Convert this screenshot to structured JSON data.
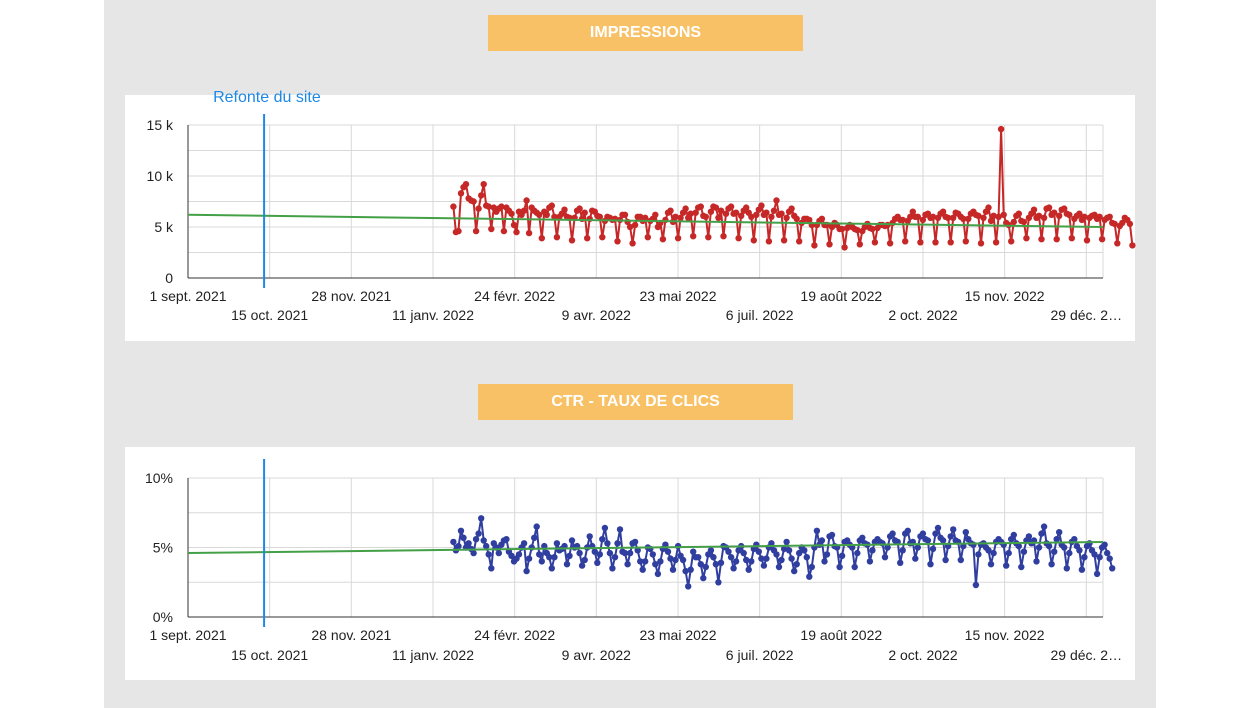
{
  "colors": {
    "panel": "#e6e6e6",
    "banner": "#f9c165",
    "grid": "#d9d9d9",
    "trend": "#43a047",
    "annotation": "#1e88e5"
  },
  "chart_data": [
    {
      "type": "line",
      "title": "IMPRESSIONS",
      "x_range": [
        "2021-09-01",
        "2023-01-07"
      ],
      "ylim": [
        0,
        15000
      ],
      "y_ticks": [
        {
          "v": 0,
          "label": "0"
        },
        {
          "v": 5000,
          "label": "5 k"
        },
        {
          "v": 10000,
          "label": "10 k"
        },
        {
          "v": 15000,
          "label": "15 k"
        }
      ],
      "grid": true,
      "series": [
        {
          "color": "#c62828",
          "start": "2022-01-22",
          "values": [
            7000,
            4500,
            4600,
            8300,
            8900,
            9200,
            7800,
            7600,
            7500,
            4600,
            6800,
            8100,
            9200,
            7100,
            7000,
            4800,
            6900,
            6500,
            6800,
            7000,
            4600,
            6900,
            6600,
            6300,
            5200,
            4500,
            6500,
            6200,
            6600,
            7600,
            4400,
            6900,
            6600,
            6400,
            6200,
            3900,
            6500,
            6200,
            6900,
            7100,
            6000,
            4000,
            6000,
            6300,
            6700,
            6000,
            5900,
            3700,
            5900,
            6600,
            6800,
            5800,
            6400,
            3900,
            5800,
            6600,
            6500,
            6100,
            6000,
            4000,
            5600,
            6000,
            5900,
            5700,
            5800,
            3600,
            5700,
            6200,
            6200,
            5500,
            5000,
            3400,
            5200,
            6000,
            6000,
            5600,
            5900,
            4000,
            5600,
            5800,
            6200,
            5000,
            5400,
            3800,
            5700,
            6400,
            6600,
            5500,
            6000,
            3900,
            5900,
            6400,
            6800,
            5900,
            6300,
            4100,
            6400,
            6900,
            7000,
            6100,
            6000,
            4000,
            6500,
            7000,
            6900,
            5900,
            6600,
            4100,
            6300,
            6800,
            7000,
            6300,
            6400,
            3900,
            6100,
            6600,
            6900,
            6400,
            6000,
            3700,
            6200,
            6700,
            7100,
            6200,
            6400,
            3600,
            6000,
            6600,
            7600,
            6200,
            6300,
            3700,
            5900,
            6500,
            6800,
            6100,
            5800,
            3600,
            5400,
            5800,
            5800,
            5700,
            5200,
            3200,
            5200,
            5600,
            5800,
            5200,
            5200,
            3300,
            5000,
            5400,
            5200,
            4800,
            4800,
            3000,
            4900,
            5200,
            5000,
            4800,
            4700,
            3300,
            4600,
            5000,
            5300,
            4900,
            4800,
            3500,
            4900,
            5200,
            5200,
            5100,
            5200,
            3400,
            5400,
            5800,
            6000,
            5700,
            5700,
            3600,
            5600,
            6000,
            6500,
            6000,
            6000,
            3500,
            5700,
            6200,
            6300,
            5900,
            6000,
            3500,
            5900,
            6300,
            6500,
            6000,
            5900,
            3500,
            5900,
            6400,
            6300,
            6000,
            5800,
            3600,
            5800,
            6300,
            6500,
            6200,
            6100,
            3400,
            5900,
            6500,
            6900,
            5600,
            6100,
            3500,
            6000,
            14600,
            6200,
            5400,
            5200,
            3600,
            5500,
            6100,
            6300,
            5600,
            5500,
            3900,
            5900,
            6300,
            6700,
            5900,
            6100,
            3800,
            5900,
            6800,
            6900,
            6200,
            6400,
            3800,
            6100,
            6700,
            6800,
            6300,
            6200,
            3900,
            5800,
            6100,
            6300,
            5700,
            6000,
            3700,
            5900,
            6100,
            6200,
            5800,
            6000,
            3800,
            5700,
            5900,
            6000,
            5400,
            5300,
            3400,
            5100,
            5400,
            5900,
            5700,
            5300,
            3200
          ]
        },
        {
          "color": "#43a047",
          "trend": true,
          "points": [
            [
              "2021-09-01",
              6200
            ],
            [
              "2023-01-07",
              5000
            ]
          ]
        }
      ],
      "annotation": {
        "date": "2021-10-12",
        "label": "Refonte du site"
      },
      "x_ticks_top": [
        {
          "date": "2021-09-01",
          "label": "1 sept. 2021"
        },
        {
          "date": "2021-11-28",
          "label": "28 nov. 2021"
        },
        {
          "date": "2022-02-24",
          "label": "24 févr. 2022"
        },
        {
          "date": "2022-05-23",
          "label": "23 mai 2022"
        },
        {
          "date": "2022-08-19",
          "label": "19 août 2022"
        },
        {
          "date": "2022-11-15",
          "label": "15 nov. 2022"
        }
      ],
      "x_ticks_bottom": [
        {
          "date": "2021-10-15",
          "label": "15 oct. 2021"
        },
        {
          "date": "2022-01-11",
          "label": "11 janv. 2022"
        },
        {
          "date": "2022-04-09",
          "label": "9 avr. 2022"
        },
        {
          "date": "2022-07-06",
          "label": "6 juil. 2022"
        },
        {
          "date": "2022-10-02",
          "label": "2 oct. 2022"
        },
        {
          "date": "2022-12-29",
          "label": "29 déc. 2…"
        }
      ]
    },
    {
      "type": "line",
      "title": "CTR - TAUX DE CLICS",
      "x_range": [
        "2021-09-01",
        "2023-01-07"
      ],
      "ylim": [
        0,
        10
      ],
      "y_ticks": [
        {
          "v": 0,
          "label": "0%"
        },
        {
          "v": 5,
          "label": "5%"
        },
        {
          "v": 10,
          "label": "10%"
        }
      ],
      "grid": true,
      "series": [
        {
          "color": "#303f9f",
          "start": "2022-01-22",
          "values": [
            5.4,
            4.8,
            5.1,
            6.2,
            5.7,
            5.0,
            5.3,
            4.9,
            4.6,
            5.6,
            6.0,
            7.1,
            5.5,
            5.1,
            4.5,
            3.5,
            5.3,
            5.0,
            4.6,
            5.2,
            5.5,
            5.6,
            4.7,
            4.4,
            4.0,
            4.2,
            4.5,
            5.0,
            5.3,
            3.3,
            4.2,
            5.0,
            5.7,
            6.5,
            4.5,
            4.0,
            5.1,
            4.6,
            4.3,
            3.5,
            4.3,
            5.3,
            4.8,
            4.9,
            5.1,
            3.8,
            4.4,
            5.5,
            5.0,
            5.1,
            4.6,
            3.7,
            4.1,
            5.0,
            5.8,
            5.1,
            4.7,
            3.9,
            4.5,
            5.6,
            6.4,
            5.3,
            4.6,
            3.5,
            4.3,
            5.3,
            6.3,
            4.7,
            4.6,
            3.8,
            4.6,
            5.3,
            5.4,
            4.8,
            4.0,
            3.4,
            4.0,
            5.0,
            4.9,
            4.5,
            3.8,
            3.1,
            4.0,
            4.9,
            5.2,
            4.7,
            4.2,
            3.4,
            4.1,
            5.1,
            4.4,
            4.1,
            3.3,
            2.2,
            3.4,
            4.7,
            4.3,
            4.3,
            3.8,
            2.8,
            3.6,
            4.5,
            4.8,
            4.3,
            3.8,
            2.5,
            3.9,
            5.1,
            5.0,
            4.7,
            4.3,
            3.5,
            4.0,
            4.8,
            5.1,
            4.6,
            4.1,
            3.4,
            4.0,
            4.9,
            5.2,
            4.7,
            4.2,
            3.7,
            4.2,
            5.0,
            5.3,
            4.8,
            4.5,
            3.6,
            4.1,
            4.9,
            5.4,
            4.8,
            4.2,
            3.3,
            3.8,
            4.6,
            5.0,
            4.8,
            4.3,
            2.9,
            3.6,
            5.0,
            6.2,
            5.2,
            5.5,
            4.0,
            4.5,
            5.8,
            5.9,
            5.1,
            5.0,
            3.6,
            4.4,
            5.4,
            5.5,
            5.2,
            5.0,
            3.6,
            4.6,
            5.5,
            5.7,
            5.3,
            5.2,
            4.0,
            4.8,
            5.4,
            5.6,
            5.4,
            5.3,
            4.3,
            5.0,
            5.8,
            6.0,
            5.5,
            5.4,
            3.9,
            4.8,
            6.0,
            6.2,
            5.3,
            5.4,
            4.2,
            5.0,
            5.8,
            6.0,
            5.6,
            5.5,
            3.8,
            4.9,
            6.0,
            6.4,
            5.7,
            5.5,
            4.1,
            5.1,
            5.8,
            6.3,
            5.5,
            5.4,
            4.1,
            5.1,
            6.1,
            5.6,
            5.3,
            5.2,
            2.3,
            4.5,
            5.2,
            5.3,
            5.0,
            4.8,
            3.8,
            4.6,
            5.4,
            5.6,
            5.4,
            5.2,
            3.7,
            4.6,
            5.6,
            5.9,
            5.3,
            5.1,
            3.6,
            4.7,
            5.5,
            5.8,
            5.3,
            5.5,
            4.0,
            5.0,
            6.0,
            6.5,
            5.3,
            5.1,
            3.8,
            4.7,
            5.6,
            6.1,
            5.2,
            5.0,
            3.5,
            4.6,
            5.4,
            5.6,
            5.1,
            4.8,
            3.4,
            4.3,
            5.1,
            5.3,
            4.8,
            4.5,
            3.1,
            4.3,
            5.0,
            5.2,
            4.6,
            4.2,
            3.5
          ]
        },
        {
          "color": "#43a047",
          "trend": true,
          "points": [
            [
              "2021-09-01",
              4.6
            ],
            [
              "2023-01-07",
              5.4
            ]
          ]
        }
      ],
      "annotation": {
        "date": "2021-10-12",
        "label": ""
      },
      "x_ticks_top": [
        {
          "date": "2021-09-01",
          "label": "1 sept. 2021"
        },
        {
          "date": "2021-11-28",
          "label": "28 nov. 2021"
        },
        {
          "date": "2022-02-24",
          "label": "24 févr. 2022"
        },
        {
          "date": "2022-05-23",
          "label": "23 mai 2022"
        },
        {
          "date": "2022-08-19",
          "label": "19 août 2022"
        },
        {
          "date": "2022-11-15",
          "label": "15 nov. 2022"
        }
      ],
      "x_ticks_bottom": [
        {
          "date": "2021-10-15",
          "label": "15 oct. 2021"
        },
        {
          "date": "2022-01-11",
          "label": "11 janv. 2022"
        },
        {
          "date": "2022-04-09",
          "label": "9 avr. 2022"
        },
        {
          "date": "2022-07-06",
          "label": "6 juil. 2022"
        },
        {
          "date": "2022-10-02",
          "label": "2 oct. 2022"
        },
        {
          "date": "2022-12-29",
          "label": "29 déc. 2…"
        }
      ]
    }
  ]
}
